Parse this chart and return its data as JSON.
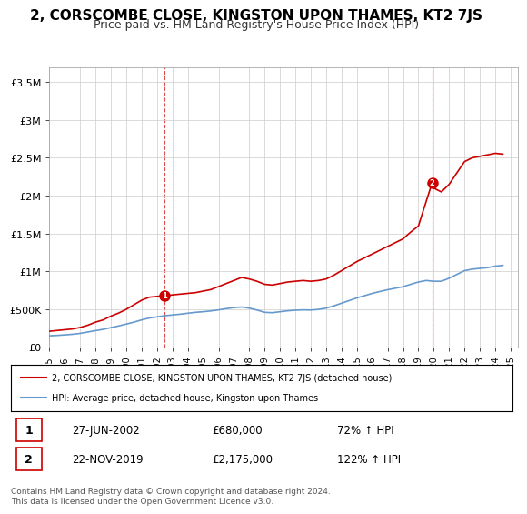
{
  "title": "2, CORSCOMBE CLOSE, KINGSTON UPON THAMES, KT2 7JS",
  "subtitle": "Price paid vs. HM Land Registry's House Price Index (HPI)",
  "title_fontsize": 11,
  "subtitle_fontsize": 9,
  "xlim": [
    1995,
    2025.5
  ],
  "ylim": [
    0,
    3700000
  ],
  "yticks": [
    0,
    500000,
    1000000,
    1500000,
    2000000,
    2500000,
    3000000,
    3500000
  ],
  "ytick_labels": [
    "£0",
    "£500K",
    "£1M",
    "£1.5M",
    "£2M",
    "£2.5M",
    "£3M",
    "£3.5M"
  ],
  "xticks": [
    1995,
    1996,
    1997,
    1998,
    1999,
    2000,
    2001,
    2002,
    2003,
    2004,
    2005,
    2006,
    2007,
    2008,
    2009,
    2010,
    2011,
    2012,
    2013,
    2014,
    2015,
    2016,
    2017,
    2018,
    2019,
    2020,
    2021,
    2022,
    2023,
    2024,
    2025
  ],
  "red_line_color": "#cc0000",
  "blue_line_color": "#6699cc",
  "sale1_x": 2002.49,
  "sale1_y": 680000,
  "sale1_label": "1",
  "sale1_date": "27-JUN-2002",
  "sale1_price": "£680,000",
  "sale1_hpi": "72% ↑ HPI",
  "sale2_x": 2019.9,
  "sale2_y": 2175000,
  "sale2_label": "2",
  "sale2_date": "22-NOV-2019",
  "sale2_price": "£2,175,000",
  "sale2_hpi": "122% ↑ HPI",
  "legend_line1": "2, CORSCOMBE CLOSE, KINGSTON UPON THAMES, KT2 7JS (detached house)",
  "legend_line2": "HPI: Average price, detached house, Kingston upon Thames",
  "footer": "Contains HM Land Registry data © Crown copyright and database right 2024.\nThis data is licensed under the Open Government Licence v3.0.",
  "red_x": [
    1995.0,
    1995.5,
    1996.0,
    1996.5,
    1997.0,
    1997.5,
    1998.0,
    1998.5,
    1999.0,
    1999.5,
    2000.0,
    2000.5,
    2001.0,
    2001.5,
    2002.0,
    2002.49,
    2003.0,
    2003.5,
    2004.0,
    2004.5,
    2005.0,
    2005.5,
    2006.0,
    2006.5,
    2007.0,
    2007.5,
    2008.0,
    2008.5,
    2009.0,
    2009.5,
    2010.0,
    2010.5,
    2011.0,
    2011.5,
    2012.0,
    2012.5,
    2013.0,
    2013.5,
    2014.0,
    2014.5,
    2015.0,
    2015.5,
    2016.0,
    2016.5,
    2017.0,
    2017.5,
    2018.0,
    2018.5,
    2019.0,
    2019.9,
    2020.0,
    2020.5,
    2021.0,
    2021.5,
    2022.0,
    2022.5,
    2023.0,
    2023.5,
    2024.0,
    2024.5
  ],
  "red_y": [
    210000,
    220000,
    230000,
    240000,
    260000,
    290000,
    330000,
    360000,
    410000,
    450000,
    500000,
    560000,
    620000,
    660000,
    670000,
    680000,
    690000,
    700000,
    710000,
    720000,
    740000,
    760000,
    800000,
    840000,
    880000,
    920000,
    900000,
    870000,
    830000,
    820000,
    840000,
    860000,
    870000,
    880000,
    870000,
    880000,
    900000,
    950000,
    1010000,
    1070000,
    1130000,
    1180000,
    1230000,
    1280000,
    1330000,
    1380000,
    1430000,
    1520000,
    1600000,
    2175000,
    2100000,
    2050000,
    2150000,
    2300000,
    2450000,
    2500000,
    2520000,
    2540000,
    2560000,
    2550000
  ],
  "blue_x": [
    1995.0,
    1995.5,
    1996.0,
    1996.5,
    1997.0,
    1997.5,
    1998.0,
    1998.5,
    1999.0,
    1999.5,
    2000.0,
    2000.5,
    2001.0,
    2001.5,
    2002.0,
    2002.5,
    2003.0,
    2003.5,
    2004.0,
    2004.5,
    2005.0,
    2005.5,
    2006.0,
    2006.5,
    2007.0,
    2007.5,
    2008.0,
    2008.5,
    2009.0,
    2009.5,
    2010.0,
    2010.5,
    2011.0,
    2011.5,
    2012.0,
    2012.5,
    2013.0,
    2013.5,
    2014.0,
    2014.5,
    2015.0,
    2015.5,
    2016.0,
    2016.5,
    2017.0,
    2017.5,
    2018.0,
    2018.5,
    2019.0,
    2019.5,
    2020.0,
    2020.5,
    2021.0,
    2021.5,
    2022.0,
    2022.5,
    2023.0,
    2023.5,
    2024.0,
    2024.5
  ],
  "blue_y": [
    150000,
    155000,
    162000,
    170000,
    182000,
    200000,
    218000,
    235000,
    258000,
    280000,
    305000,
    330000,
    360000,
    385000,
    400000,
    415000,
    425000,
    435000,
    448000,
    460000,
    468000,
    478000,
    492000,
    508000,
    522000,
    530000,
    515000,
    490000,
    460000,
    455000,
    468000,
    480000,
    488000,
    492000,
    490000,
    498000,
    515000,
    545000,
    580000,
    615000,
    650000,
    680000,
    710000,
    735000,
    758000,
    778000,
    798000,
    830000,
    860000,
    880000,
    870000,
    870000,
    910000,
    960000,
    1010000,
    1030000,
    1040000,
    1050000,
    1070000,
    1080000
  ]
}
